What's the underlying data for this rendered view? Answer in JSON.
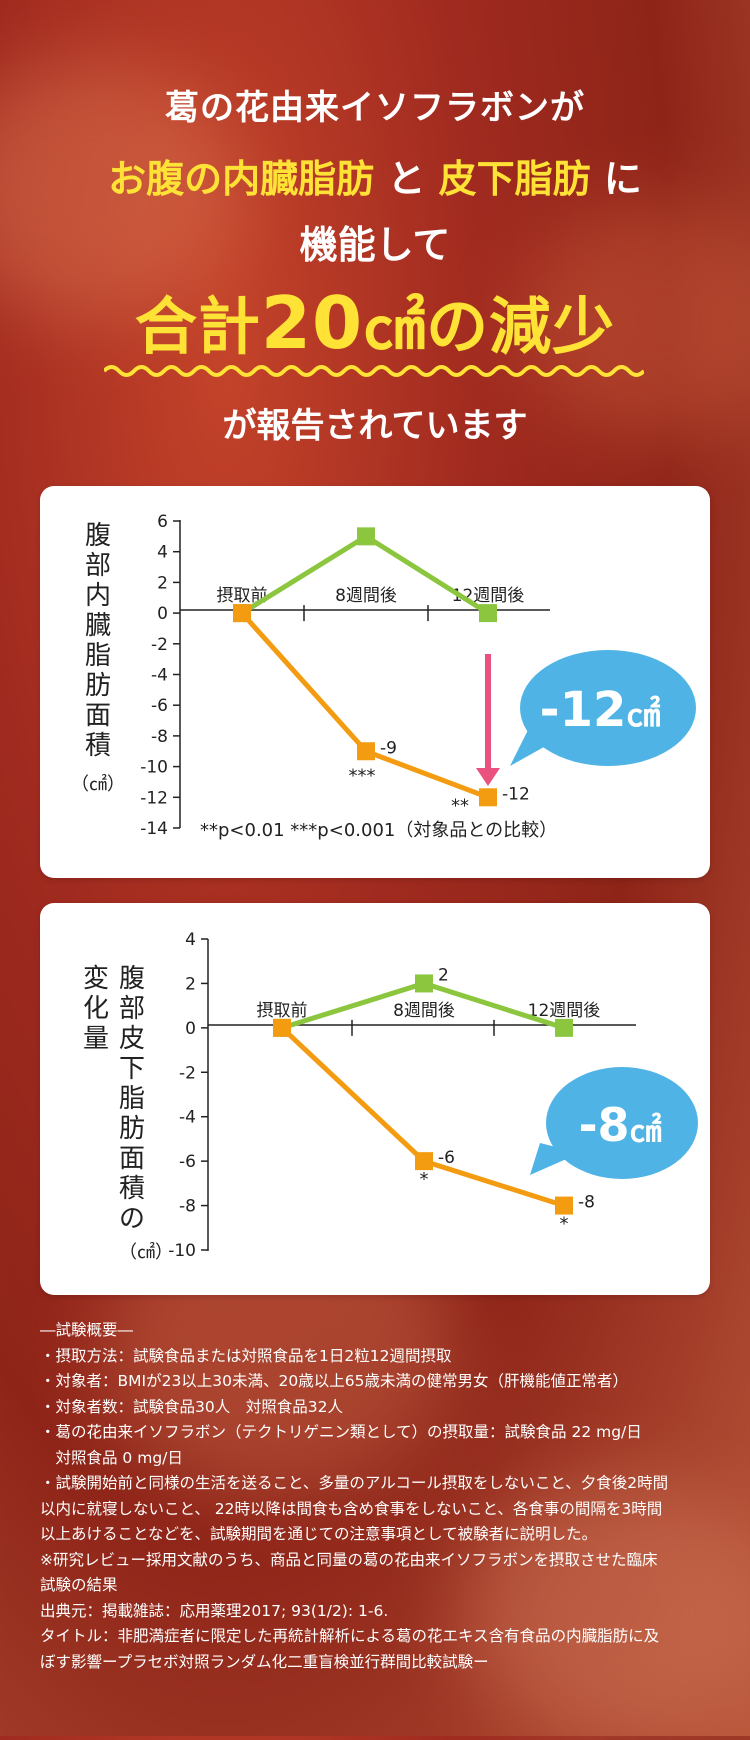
{
  "hero": {
    "line1": "葛の花由来イソフラボンが",
    "line2_part1": "お腹の内臓脂肪",
    "line2_part2": "と",
    "line2_part3": "皮下脂肪",
    "line2_part4": "に",
    "line3": "機能して",
    "line4_prefix": "合計",
    "line4_number": "20",
    "line4_unit": "㎠",
    "line4_suffix": "の減少",
    "line5": "が報告されています"
  },
  "colors": {
    "accent_yellow": "#ffe236",
    "series_orange": "#f39c12",
    "series_green": "#8cc63f",
    "bubble_blue": "#4fb3e6",
    "arrow_pink": "#e9527e"
  },
  "chart_data": [
    {
      "type": "line",
      "ylabel": "腹部内臓脂肪面積（㎠）",
      "ylim": [
        -14,
        6
      ],
      "yticks": [
        "6",
        "4",
        "2",
        "0",
        "-2",
        "-4",
        "-6",
        "-8",
        "-10",
        "-12",
        "-14"
      ],
      "categories": [
        "摂取前",
        "8週間後",
        "12週間後"
      ],
      "series": [
        {
          "values": [
            0,
            -9,
            -12
          ],
          "data_labels": [
            "",
            "-9",
            "-12"
          ],
          "significance": [
            "",
            "***",
            "**"
          ]
        },
        {
          "values": [
            0,
            5,
            0
          ]
        }
      ],
      "footnote": "**p<0.01 ***p<0.001（対象品との比較）",
      "callout": "-12",
      "callout_unit": "㎠"
    },
    {
      "type": "line",
      "ylabel_line1": "腹部皮下脂肪面積の",
      "ylabel_line2": "変化量",
      "yunit": "（㎠）",
      "ylim": [
        -10,
        4
      ],
      "yticks": [
        "4",
        "2",
        "0",
        "-2",
        "-4",
        "-6",
        "-8",
        "-10"
      ],
      "categories": [
        "摂取前",
        "8週間後",
        "12週間後"
      ],
      "series": [
        {
          "values": [
            0,
            -6,
            -8
          ],
          "data_labels": [
            "",
            "-6",
            "-8"
          ],
          "significance": [
            "",
            "*",
            "*"
          ]
        },
        {
          "values": [
            0,
            2,
            0
          ],
          "data_labels": [
            "",
            "2",
            ""
          ]
        }
      ],
      "callout": "-8",
      "callout_unit": "㎠"
    }
  ],
  "notes": [
    "―試験概要―",
    "・摂取方法：試験食品または対照食品を1日2粒12週間摂取",
    "・対象者：BMIが23以上30未満、20歳以上65歳未満の健常男女（肝機能値正常者）",
    "・対象者数：試験食品30人　対照食品32人",
    "・葛の花由来イソフラボン（テクトリゲニン類として）の摂取量：試験食品 22 mg/日",
    "　対照食品 0 mg/日",
    "・試験開始前と同様の生活を送ること、多量のアルコール摂取をしないこと、夕食後2時間",
    "以内に就寝しないこと、 22時以降は間食も含め食事をしないこと、各食事の間隔を3時間",
    "以上あけることなどを、試験期間を通じての注意事項として被験者に説明した。",
    "※研究レビュー採用文献のうち、商品と同量の葛の花由来イソフラボンを摂取させた臨床",
    "試験の結果",
    "出典元：掲載雑誌：応用薬理2017; 93(1/2): 1-6.",
    "タイトル：非肥満症者に限定した再統計解析による葛の花エキス含有食品の内臓脂肪に及",
    "ぼす影響ープラセボ対照ランダム化二重盲検並行群間比較試験ー"
  ]
}
